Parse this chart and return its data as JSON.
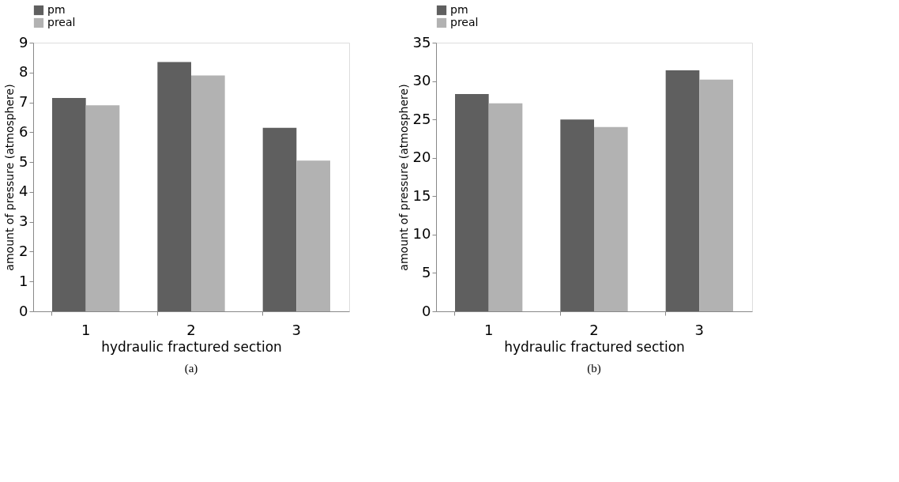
{
  "chart_data": [
    {
      "type": "bar",
      "categories": [
        "1",
        "2",
        "3"
      ],
      "xlabel": "hydraulic fractured section",
      "ylabel": "amount of pressure (atmosphere)",
      "ylim": [
        0,
        9
      ],
      "yticks": [
        0,
        1,
        2,
        3,
        4,
        5,
        6,
        7,
        8,
        9
      ],
      "grid": false,
      "legend": "top",
      "annotations": [
        "(a)"
      ],
      "series": [
        {
          "name": "pm",
          "color": "#5f5f5f",
          "values": [
            7.15,
            8.35,
            6.15
          ]
        },
        {
          "name": "preal",
          "color": "#b2b2b2",
          "values": [
            6.9,
            7.9,
            5.05
          ]
        }
      ]
    },
    {
      "type": "bar",
      "categories": [
        "1",
        "2",
        "3"
      ],
      "xlabel": "hydraulic fractured section",
      "ylabel": "amount of pressure (atmosphere)",
      "ylim": [
        0,
        35
      ],
      "yticks": [
        0,
        5,
        10,
        15,
        20,
        25,
        30,
        35
      ],
      "grid": false,
      "legend": "top",
      "annotations": [
        "(b)"
      ],
      "series": [
        {
          "name": "pm",
          "color": "#5f5f5f",
          "values": [
            28.3,
            25.0,
            31.4
          ]
        },
        {
          "name": "preal",
          "color": "#b2b2b2",
          "values": [
            27.1,
            24.0,
            30.2
          ]
        }
      ]
    }
  ]
}
